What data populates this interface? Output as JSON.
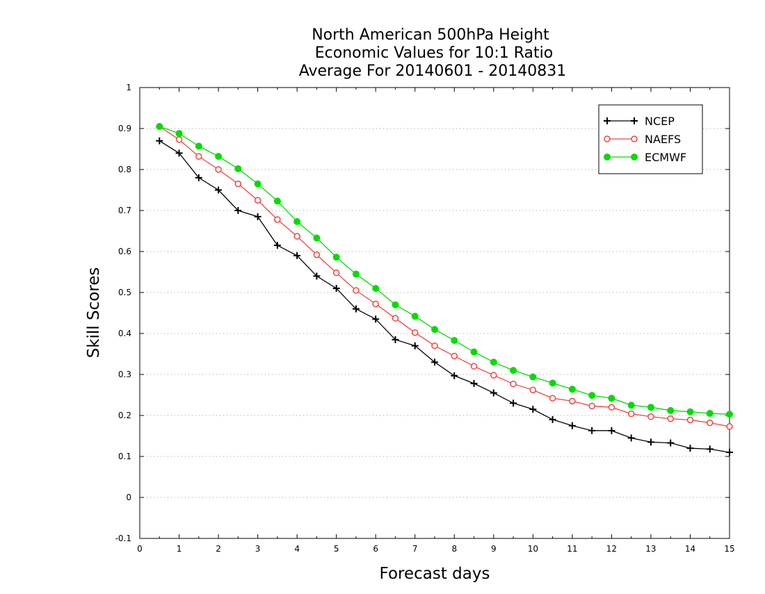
{
  "chart_data": {
    "type": "line",
    "title": [
      "North American 500hPa Height",
      "Economic Values for 10:1 Ratio",
      "Average For 20140601 - 20140831"
    ],
    "xlabel": "Forecast days",
    "ylabel": "Skill Scores",
    "xlim": [
      0,
      15
    ],
    "ylim": [
      -0.1,
      1
    ],
    "x_ticks": [
      "0",
      "1",
      "2",
      "3",
      "4",
      "5",
      "6",
      "7",
      "8",
      "9",
      "10",
      "11",
      "12",
      "13",
      "14",
      "15"
    ],
    "y_ticks": [
      "1",
      "0.9",
      "0.8",
      "0.7",
      "0.6",
      "0.5",
      "0.4",
      "0.3",
      "0.2",
      "0.1",
      "0",
      "-0.1"
    ],
    "grid": "horizontal dotted",
    "legend_position": "top-right",
    "x": [
      0.5,
      1,
      1.5,
      2,
      2.5,
      3,
      3.5,
      4,
      4.5,
      5,
      5.5,
      6,
      6.5,
      7,
      7.5,
      8,
      8.5,
      9,
      9.5,
      10,
      10.5,
      11,
      11.5,
      12,
      12.5,
      13,
      13.5,
      14,
      14.5,
      15
    ],
    "series": [
      {
        "name": "NCEP",
        "color": "#000000",
        "marker": "plus",
        "values": [
          0.87,
          0.84,
          0.78,
          0.75,
          0.7,
          0.685,
          0.615,
          0.59,
          0.54,
          0.51,
          0.46,
          0.435,
          0.385,
          0.37,
          0.33,
          0.297,
          0.278,
          0.255,
          0.23,
          0.215,
          0.19,
          0.175,
          0.163,
          0.163,
          0.145,
          0.135,
          0.133,
          0.12,
          0.118,
          0.11
        ]
      },
      {
        "name": "NAEFS",
        "color": "#ee4444",
        "marker": "open-circle",
        "values": [
          0.905,
          0.873,
          0.832,
          0.8,
          0.765,
          0.725,
          0.678,
          0.637,
          0.592,
          0.548,
          0.505,
          0.472,
          0.437,
          0.402,
          0.37,
          0.345,
          0.32,
          0.298,
          0.277,
          0.262,
          0.242,
          0.235,
          0.223,
          0.22,
          0.204,
          0.197,
          0.192,
          0.189,
          0.182,
          0.173
        ]
      },
      {
        "name": "ECMWF",
        "color": "#00dd00",
        "marker": "filled-circle",
        "values": [
          0.905,
          0.888,
          0.857,
          0.832,
          0.802,
          0.765,
          0.723,
          0.673,
          0.633,
          0.586,
          0.545,
          0.51,
          0.47,
          0.442,
          0.41,
          0.383,
          0.355,
          0.33,
          0.31,
          0.294,
          0.279,
          0.264,
          0.249,
          0.242,
          0.225,
          0.22,
          0.212,
          0.209,
          0.205,
          0.203
        ]
      }
    ]
  }
}
